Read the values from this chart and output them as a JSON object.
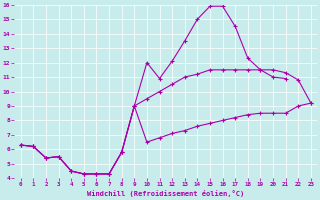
{
  "xlabel": "Windchill (Refroidissement éolien,°C)",
  "background_color": "#c8ecec",
  "line_color": "#aa00aa",
  "xlim": [
    -0.5,
    23.5
  ],
  "ylim": [
    4,
    16
  ],
  "xticks": [
    0,
    1,
    2,
    3,
    4,
    5,
    6,
    7,
    8,
    9,
    10,
    11,
    12,
    13,
    14,
    15,
    16,
    17,
    18,
    19,
    20,
    21,
    22,
    23
  ],
  "yticks": [
    4,
    5,
    6,
    7,
    8,
    9,
    10,
    11,
    12,
    13,
    14,
    15,
    16
  ],
  "s1_x": [
    0,
    1,
    2,
    3,
    4,
    5,
    6,
    7,
    8,
    9,
    10,
    11,
    12,
    13,
    14,
    15,
    16,
    17,
    18,
    19,
    20,
    21
  ],
  "s1_y": [
    6.3,
    6.2,
    5.4,
    5.5,
    4.5,
    4.3,
    4.3,
    4.3,
    5.8,
    9.0,
    12.0,
    10.9,
    12.1,
    13.5,
    15.0,
    15.9,
    15.9,
    14.5,
    12.3,
    11.5,
    11.0,
    10.9
  ],
  "s2_x": [
    0,
    1,
    2,
    3,
    4,
    5,
    6,
    7,
    8,
    9,
    10,
    11,
    12,
    13,
    14,
    15,
    16,
    17,
    18,
    19,
    20,
    21,
    22,
    23
  ],
  "s2_y": [
    6.3,
    6.2,
    5.4,
    5.5,
    4.5,
    4.3,
    4.3,
    4.3,
    5.8,
    9.0,
    9.5,
    10.0,
    10.5,
    11.0,
    11.2,
    11.5,
    11.5,
    11.5,
    11.5,
    11.5,
    11.5,
    11.3,
    10.8,
    9.2
  ],
  "s3_x": [
    0,
    1,
    2,
    3,
    4,
    5,
    6,
    7,
    8,
    9,
    10,
    11,
    12,
    13,
    14,
    15,
    16,
    17,
    18,
    19,
    20,
    21,
    22,
    23
  ],
  "s3_y": [
    6.3,
    6.2,
    5.4,
    5.5,
    4.5,
    4.3,
    4.3,
    4.3,
    5.8,
    9.0,
    6.5,
    6.8,
    7.1,
    7.3,
    7.6,
    7.8,
    8.0,
    8.2,
    8.4,
    8.5,
    8.5,
    8.5,
    9.0,
    9.2
  ]
}
